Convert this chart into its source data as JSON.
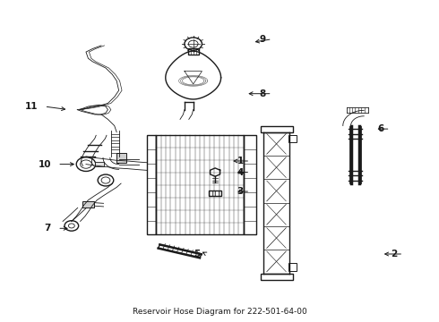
{
  "title": "Reservoir Hose Diagram for 222-501-64-00",
  "bg": "#ffffff",
  "lc": "#1a1a1a",
  "figsize": [
    4.9,
    3.6
  ],
  "dpi": 100,
  "label_positions": {
    "1": [
      0.57,
      0.5,
      0.525,
      0.5
    ],
    "2": [
      0.92,
      0.21,
      0.87,
      0.21
    ],
    "3": [
      0.57,
      0.405,
      0.535,
      0.405
    ],
    "4": [
      0.57,
      0.465,
      0.535,
      0.465
    ],
    "5": [
      0.47,
      0.21,
      0.455,
      0.22
    ],
    "6": [
      0.89,
      0.6,
      0.855,
      0.6
    ],
    "7": [
      0.13,
      0.29,
      0.16,
      0.29
    ],
    "8": [
      0.62,
      0.71,
      0.56,
      0.71
    ],
    "9": [
      0.62,
      0.88,
      0.575,
      0.87
    ],
    "10": [
      0.13,
      0.49,
      0.175,
      0.49
    ],
    "11": [
      0.1,
      0.67,
      0.155,
      0.66
    ]
  }
}
